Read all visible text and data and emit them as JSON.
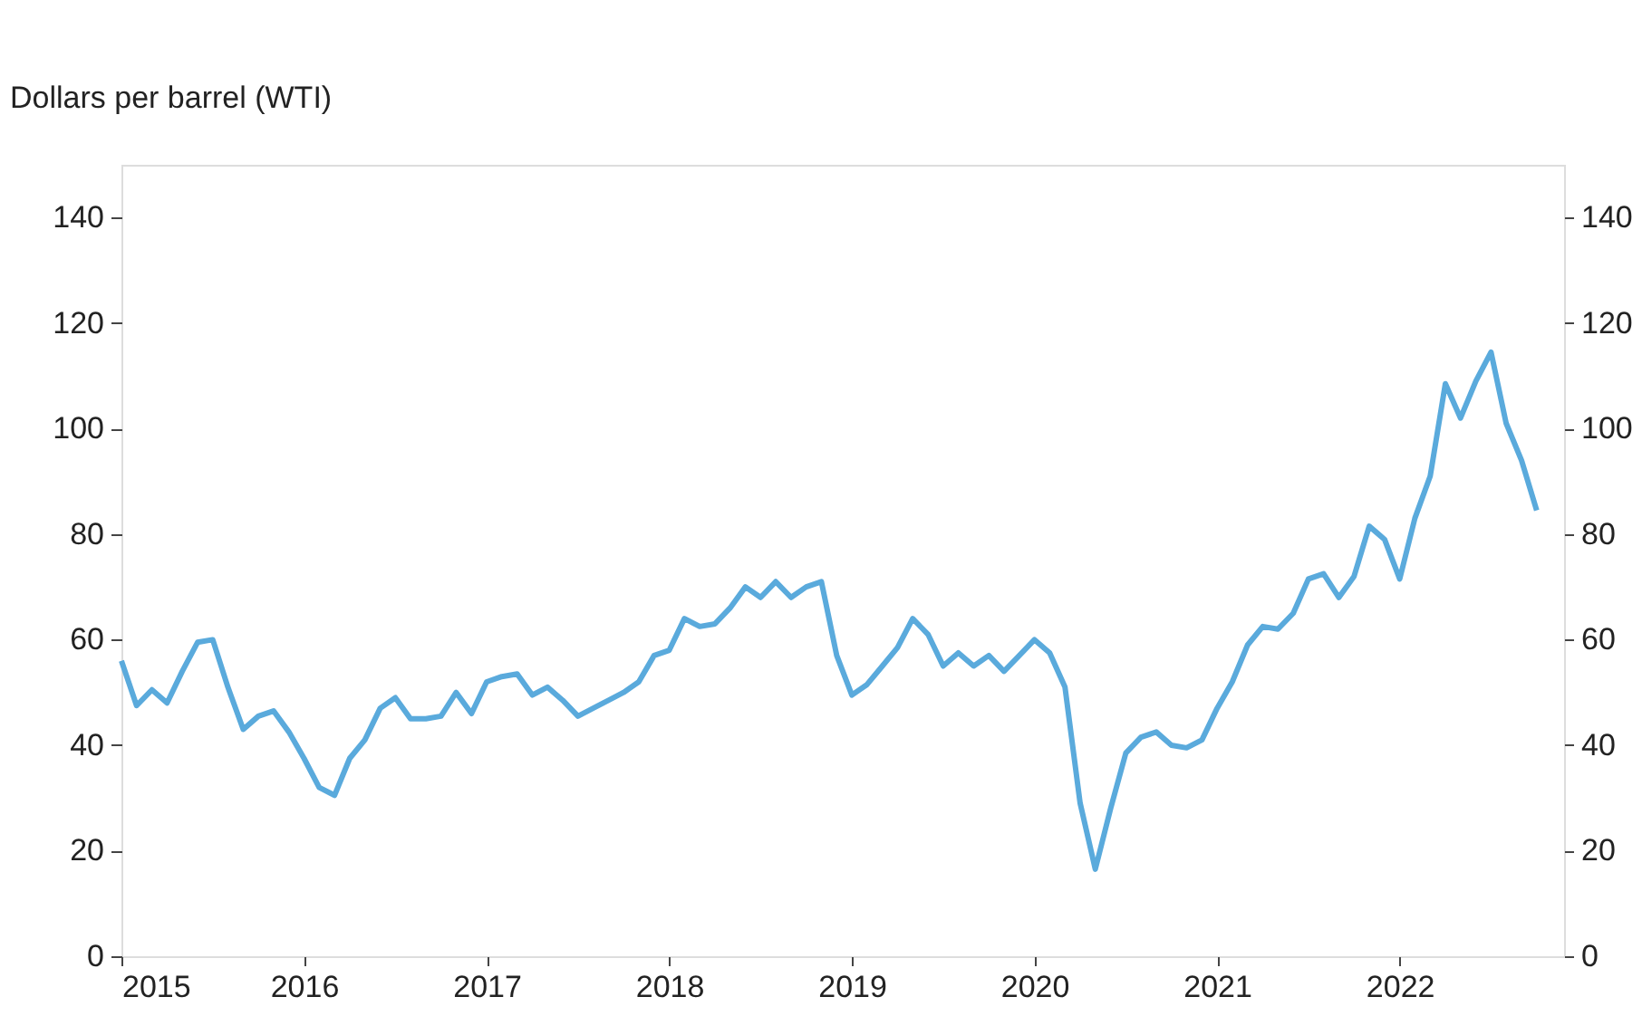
{
  "chart_data": {
    "type": "line",
    "ylabel": "Dollars per barrel (WTI)",
    "x": [
      2015.0,
      2015.083,
      2015.167,
      2015.25,
      2015.333,
      2015.417,
      2015.5,
      2015.583,
      2015.667,
      2015.75,
      2015.833,
      2015.917,
      2016.0,
      2016.083,
      2016.167,
      2016.25,
      2016.333,
      2016.417,
      2016.5,
      2016.583,
      2016.667,
      2016.75,
      2016.833,
      2016.917,
      2017.0,
      2017.083,
      2017.167,
      2017.25,
      2017.333,
      2017.417,
      2017.5,
      2017.583,
      2017.667,
      2017.75,
      2017.833,
      2017.917,
      2018.0,
      2018.083,
      2018.167,
      2018.25,
      2018.333,
      2018.417,
      2018.5,
      2018.583,
      2018.667,
      2018.75,
      2018.833,
      2018.917,
      2019.0,
      2019.083,
      2019.167,
      2019.25,
      2019.333,
      2019.417,
      2019.5,
      2019.583,
      2019.667,
      2019.75,
      2019.833,
      2019.917,
      2020.0,
      2020.083,
      2020.167,
      2020.25,
      2020.333,
      2020.417,
      2020.5,
      2020.583,
      2020.667,
      2020.75,
      2020.833,
      2020.917,
      2021.0,
      2021.083,
      2021.167,
      2021.25,
      2021.333,
      2021.417,
      2021.5,
      2021.583,
      2021.667,
      2021.75,
      2021.833,
      2021.917,
      2022.0,
      2022.083,
      2022.167,
      2022.25,
      2022.333,
      2022.417,
      2022.5,
      2022.583,
      2022.667,
      2022.75
    ],
    "series": [
      {
        "color": "#5aaadc",
        "values": [
          56,
          47.5,
          50.5,
          48,
          54,
          59.5,
          60,
          51,
          43,
          45.5,
          46.5,
          42.5,
          37.5,
          32,
          30.5,
          37.5,
          41,
          47,
          49,
          45,
          45,
          45.5,
          50,
          46,
          52,
          53,
          53.5,
          49.5,
          51,
          48.5,
          45.5,
          47,
          48.5,
          50,
          52,
          57,
          58,
          64,
          62.5,
          63,
          66,
          70,
          68,
          71,
          68,
          70,
          71,
          57,
          49.5,
          51.5,
          55,
          58.5,
          64,
          61,
          55,
          57.5,
          55,
          57,
          54,
          57,
          60,
          57.5,
          51,
          29,
          16.5,
          28,
          38.5,
          41.5,
          42.5,
          40,
          39.5,
          41,
          47,
          52,
          59,
          62.5,
          62,
          65,
          71.5,
          72.5,
          68,
          72,
          81.5,
          79,
          71.5,
          83,
          91,
          108.5,
          102,
          109,
          114.5,
          101,
          94,
          84.5
        ]
      }
    ],
    "xlim": [
      2015,
      2022.9
    ],
    "xticks": [
      2015,
      2016,
      2017,
      2018,
      2019,
      2020,
      2021,
      2022
    ],
    "ylim": [
      0,
      150
    ],
    "yticks": [
      0,
      20,
      40,
      60,
      80,
      100,
      120,
      140
    ],
    "y2lim": [
      0,
      150
    ],
    "y2ticks": [
      0,
      20,
      40,
      60,
      80,
      100,
      120,
      140
    ],
    "grid": false,
    "legend": false,
    "line_style": "solid",
    "marker": "none"
  }
}
